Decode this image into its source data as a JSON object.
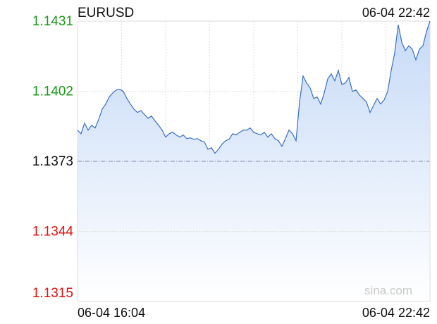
{
  "chart_data": {
    "type": "area-line",
    "title": "EURUSD",
    "timestamp": "06-04 22:42",
    "watermark": "sina.com",
    "x_labels": [
      "06-04 16:04",
      "06-04 22:42"
    ],
    "color": "#3a6fc4",
    "ylim": [
      1.1315,
      1.1431
    ],
    "yticks": [
      1.1431,
      1.1402,
      1.1373,
      1.1344,
      1.1315
    ],
    "ytick_colors": [
      "#1a9a1a",
      "#1a9a1a",
      "#111111",
      "#e01010",
      "#e01010"
    ],
    "reference_tick": 2,
    "grid": true,
    "values": [
      1.13859,
      1.13844,
      1.13888,
      1.13859,
      1.13879,
      1.13868,
      1.13903,
      1.13946,
      1.13967,
      1.13996,
      1.14013,
      1.14025,
      1.14028,
      1.14019,
      1.1399,
      1.13967,
      1.13946,
      1.13932,
      1.1394,
      1.13923,
      1.13908,
      1.13917,
      1.13897,
      1.13879,
      1.13859,
      1.1383,
      1.13844,
      1.1385,
      1.13839,
      1.1383,
      1.13839,
      1.13824,
      1.13827,
      1.13821,
      1.13824,
      1.13815,
      1.1381,
      1.1378,
      1.13786,
      1.13763,
      1.1378,
      1.13801,
      1.13815,
      1.13821,
      1.13844,
      1.13839,
      1.1385,
      1.13859,
      1.13859,
      1.13868,
      1.1385,
      1.13844,
      1.13839,
      1.1385,
      1.1383,
      1.13844,
      1.13824,
      1.13815,
      1.13792,
      1.13824,
      1.13859,
      1.13844,
      1.13815,
      1.13975,
      1.14083,
      1.14054,
      1.14034,
      1.1399,
      1.13996,
      1.13967,
      1.14013,
      1.14071,
      1.14092,
      1.14063,
      1.14106,
      1.14048,
      1.14054,
      1.14077,
      1.14019,
      1.14025,
      1.14004,
      1.1399,
      1.13975,
      1.13932,
      1.13961,
      1.1399,
      1.13967,
      1.13984,
      1.14019,
      1.14106,
      1.14179,
      1.14295,
      1.14223,
      1.14188,
      1.14208,
      1.14194,
      1.1415,
      1.14194,
      1.14208,
      1.14266,
      1.1431
    ]
  }
}
